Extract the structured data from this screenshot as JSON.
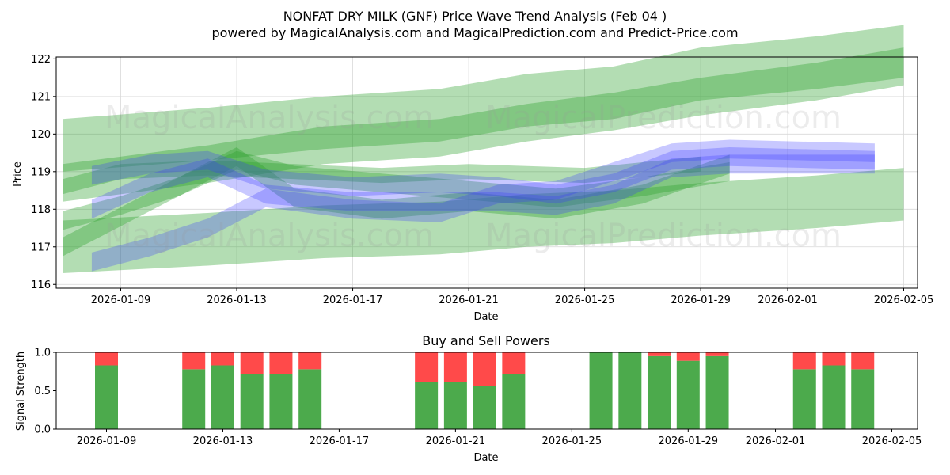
{
  "chart_data": [
    {
      "type": "area",
      "title": "NONFAT DRY MILK (GNF) Price Wave Trend Analysis (Feb 04 )",
      "subtitle": "powered by MagicalAnalysis.com and MagicalPrediction.com and Predict-Price.com",
      "xlabel": "Date",
      "ylabel": "Price",
      "ylim": [
        115.9,
        122.05
      ],
      "yticks": [
        "116",
        "117",
        "118",
        "119",
        "120",
        "121",
        "122"
      ],
      "xticks": [
        "2026-01-09",
        "2026-01-13",
        "2026-01-17",
        "2026-01-21",
        "2026-01-25",
        "2026-01-29",
        "2026-02-01",
        "2026-02-05"
      ],
      "watermarks": [
        "MagicalAnalysis.com",
        "MagicalPrediction.com",
        "MagicalAnalysis.com",
        "MagicalPrediction.com"
      ],
      "series": [
        {
          "name": "green-band-upper",
          "color": "#2ca02c",
          "x": [
            "2026-01-07",
            "2026-01-12",
            "2026-01-16",
            "2026-01-20",
            "2026-01-23",
            "2026-01-26",
            "2026-01-29",
            "2026-02-02",
            "2026-02-05"
          ],
          "center": [
            119.7,
            120.0,
            120.3,
            120.5,
            120.9,
            121.1,
            121.6,
            121.9,
            122.2
          ],
          "half_width": 0.7
        },
        {
          "name": "green-band-main",
          "color": "#2ca02c",
          "x": [
            "2026-01-07",
            "2026-01-12",
            "2026-01-16",
            "2026-01-20",
            "2026-01-23",
            "2026-01-26",
            "2026-01-29",
            "2026-02-02",
            "2026-02-05"
          ],
          "center": [
            118.7,
            119.2,
            119.7,
            119.9,
            120.3,
            120.6,
            121.0,
            121.4,
            121.8
          ],
          "half_width": 0.5
        },
        {
          "name": "green-band-lower",
          "color": "#2ca02c",
          "x": [
            "2026-01-07",
            "2026-01-12",
            "2026-01-16",
            "2026-01-20",
            "2026-01-23",
            "2026-01-26",
            "2026-01-29",
            "2026-02-02",
            "2026-02-05"
          ],
          "center": [
            117.0,
            117.2,
            117.4,
            117.5,
            117.7,
            117.8,
            118.0,
            118.2,
            118.4
          ],
          "half_width": 0.7
        },
        {
          "name": "green-wave-1",
          "color": "#2ca02c",
          "x": [
            "2026-01-07",
            "2026-01-09",
            "2026-01-11",
            "2026-01-13",
            "2026-01-15",
            "2026-01-18",
            "2026-01-21",
            "2026-01-24",
            "2026-01-27",
            "2026-01-30"
          ],
          "center": [
            117.7,
            118.1,
            118.6,
            119.3,
            118.9,
            118.7,
            118.5,
            118.3,
            118.6,
            119.0
          ],
          "half_width": 0.25
        },
        {
          "name": "green-wave-2",
          "color": "#2ca02c",
          "x": [
            "2026-01-07",
            "2026-01-09",
            "2026-01-11",
            "2026-01-13",
            "2026-01-15",
            "2026-01-18",
            "2026-01-21",
            "2026-01-24",
            "2026-01-27",
            "2026-01-30"
          ],
          "center": [
            117.0,
            117.8,
            118.6,
            119.4,
            118.3,
            118.0,
            118.2,
            118.0,
            118.4,
            119.2
          ],
          "half_width": 0.25
        },
        {
          "name": "green-wave-3",
          "color": "#2ca02c",
          "x": [
            "2026-01-07",
            "2026-01-09",
            "2026-01-12",
            "2026-01-15",
            "2026-01-18",
            "2026-01-21",
            "2026-01-25",
            "2026-01-29"
          ],
          "center": [
            118.6,
            119.0,
            119.1,
            119.0,
            118.9,
            119.0,
            118.9,
            119.2
          ],
          "half_width": 0.2
        },
        {
          "name": "blue-wave-1",
          "color": "#3a3aff",
          "x": [
            "2026-01-08",
            "2026-01-10",
            "2026-01-12",
            "2026-01-14",
            "2026-01-17",
            "2026-01-20",
            "2026-01-22",
            "2026-01-24",
            "2026-01-26",
            "2026-01-28",
            "2026-01-30",
            "2026-02-04"
          ],
          "center": [
            116.6,
            117.0,
            117.5,
            118.3,
            118.0,
            117.9,
            118.4,
            118.5,
            119.0,
            119.5,
            119.6,
            119.5
          ],
          "half_width": 0.25
        },
        {
          "name": "blue-wave-2",
          "color": "#3a3aff",
          "x": [
            "2026-01-08",
            "2026-01-10",
            "2026-01-12",
            "2026-01-14",
            "2026-01-17",
            "2026-01-20",
            "2026-01-22",
            "2026-01-24",
            "2026-01-26",
            "2026-01-28",
            "2026-01-30",
            "2026-02-04"
          ],
          "center": [
            118.9,
            119.2,
            119.3,
            118.8,
            118.6,
            118.7,
            118.6,
            118.4,
            118.7,
            119.3,
            119.4,
            119.3
          ],
          "half_width": 0.25
        },
        {
          "name": "blue-wave-3",
          "color": "#3a3aff",
          "x": [
            "2026-01-08",
            "2026-01-10",
            "2026-01-12",
            "2026-01-14",
            "2026-01-17",
            "2026-01-20",
            "2026-01-22",
            "2026-01-24",
            "2026-01-26",
            "2026-01-28",
            "2026-01-30",
            "2026-02-04"
          ],
          "center": [
            118.0,
            118.7,
            119.1,
            118.4,
            118.2,
            118.2,
            118.2,
            118.1,
            118.4,
            119.1,
            119.2,
            119.2
          ],
          "half_width": 0.25
        }
      ]
    },
    {
      "type": "bar",
      "title": "Buy and Sell Powers",
      "xlabel": "Date",
      "ylabel": "Signal Strength",
      "ylim": [
        0,
        1
      ],
      "yticks": [
        "0.0",
        "0.5",
        "1.0"
      ],
      "xticks": [
        "2026-01-09",
        "2026-01-13",
        "2026-01-17",
        "2026-01-21",
        "2026-01-25",
        "2026-01-29",
        "2026-02-01",
        "2026-02-05"
      ],
      "categories": [
        "2026-01-09",
        "2026-01-12",
        "2026-01-13",
        "2026-01-14",
        "2026-01-15",
        "2026-01-16",
        "2026-01-20",
        "2026-01-21",
        "2026-01-22",
        "2026-01-23",
        "2026-01-26",
        "2026-01-27",
        "2026-01-28",
        "2026-01-29",
        "2026-01-30",
        "2026-02-02",
        "2026-02-03",
        "2026-02-04"
      ],
      "series": [
        {
          "name": "Buy",
          "color": "#4caa4c",
          "values": [
            0.83,
            0.78,
            0.83,
            0.72,
            0.72,
            0.78,
            0.61,
            0.61,
            0.56,
            0.72,
            1.0,
            1.0,
            0.95,
            0.89,
            0.95,
            0.78,
            0.83,
            0.78
          ]
        },
        {
          "name": "Sell",
          "color": "#ff4a4a",
          "values": [
            0.17,
            0.22,
            0.17,
            0.28,
            0.28,
            0.22,
            0.39,
            0.39,
            0.44,
            0.28,
            0.0,
            0.0,
            0.05,
            0.11,
            0.05,
            0.22,
            0.17,
            0.22
          ]
        }
      ]
    }
  ]
}
